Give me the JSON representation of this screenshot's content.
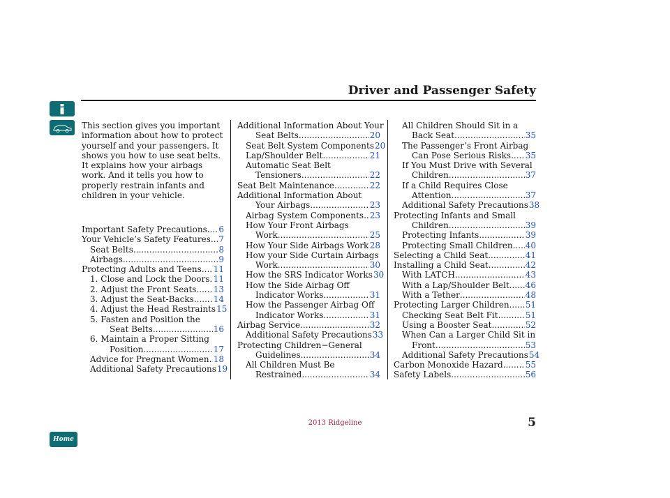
{
  "title": "Driver and Passenger Safety",
  "intro": "This section gives you important information about how to protect yourself and your passengers. It shows you how to use seat belts. It explains how your airbags work. And it tells you how to properly restrain infants and children in your vehicle.",
  "nav": {
    "info_icon": "info-icon",
    "car_icon": "car-icon",
    "home_label": "Home"
  },
  "footer": "2013 Ridgeline",
  "page_number": "5",
  "col1": [
    {
      "t": "Important Safety Precautions",
      "p": "6"
    },
    {
      "t": "Your Vehicle’s Safety Features",
      "p": "7"
    },
    {
      "t": "Seat Belts",
      "p": "8"
    },
    {
      "t": "Airbags",
      "p": "9"
    },
    {
      "t": "Protecting Adults and Teens",
      "p": "11"
    },
    {
      "t": "1. Close and Lock the Doors",
      "p": "11"
    },
    {
      "t": "2. Adjust the Front Seats",
      "p": "13"
    },
    {
      "t": "3. Adjust the Seat-Backs",
      "p": "14"
    },
    {
      "t": "4. Adjust the Head Restraints",
      "p": "15"
    },
    {
      "t": "5. Fasten and Position the"
    },
    {
      "t": "Seat Belts",
      "p": "16"
    },
    {
      "t": "6. Maintain a Proper Sitting"
    },
    {
      "t": "Position",
      "p": "17"
    },
    {
      "t": "Advice for Pregnant Women",
      "p": "18"
    },
    {
      "t": "Additional Safety Precautions",
      "p": "19"
    }
  ],
  "col2": [
    {
      "t": "Additional Information About Your"
    },
    {
      "t": "Seat Belts",
      "p": "20"
    },
    {
      "t": "Seat Belt System Components",
      "p": "20"
    },
    {
      "t": "Lap/Shoulder Belt",
      "p": "21"
    },
    {
      "t": "Automatic Seat Belt"
    },
    {
      "t": "Tensioners",
      "p": "22"
    },
    {
      "t": "Seat Belt Maintenance",
      "p": "22"
    },
    {
      "t": "Additional Information About"
    },
    {
      "t": "Your Airbags",
      "p": "23"
    },
    {
      "t": "Airbag System Components",
      "p": "23"
    },
    {
      "t": "How Your Front Airbags"
    },
    {
      "t": "Work",
      "p": "25"
    },
    {
      "t": "How Your Side Airbags Work",
      "p": "28"
    },
    {
      "t": "How your Side Curtain Airbags"
    },
    {
      "t": "Work",
      "p": "30"
    },
    {
      "t": "How the SRS Indicator Works",
      "p": "30"
    },
    {
      "t": "How the Side Airbag Off"
    },
    {
      "t": "Indicator Works",
      "p": "31"
    },
    {
      "t": "How the Passenger Airbag Off"
    },
    {
      "t": "Indicator Works",
      "p": "31"
    },
    {
      "t": "Airbag Service",
      "p": "32"
    },
    {
      "t": "Additional Safety Precautions",
      "p": "33"
    },
    {
      "t": "Protecting Children−General"
    },
    {
      "t": "Guidelines",
      "p": "34"
    },
    {
      "t": "All Children Must Be"
    },
    {
      "t": "Restrained",
      "p": "34"
    }
  ],
  "col3": [
    {
      "t": "All Children Should Sit in a"
    },
    {
      "t": "Back Seat",
      "p": "35"
    },
    {
      "t": "The Passenger’s Front Airbag"
    },
    {
      "t": "Can Pose Serious Risks",
      "p": "35"
    },
    {
      "t": "If You Must Drive with Several"
    },
    {
      "t": "Children",
      "p": "37"
    },
    {
      "t": "If a Child Requires Close"
    },
    {
      "t": "Attention",
      "p": "37"
    },
    {
      "t": "Additional Safety Precautions",
      "p": "38"
    },
    {
      "t": "Protecting Infants and Small"
    },
    {
      "t": "Children",
      "p": "39"
    },
    {
      "t": "Protecting Infants",
      "p": "39"
    },
    {
      "t": "Protecting Small Children",
      "p": "40"
    },
    {
      "t": "Selecting a Child Seat",
      "p": "41"
    },
    {
      "t": "Installing a Child Seat",
      "p": "42"
    },
    {
      "t": "With LATCH",
      "p": "43"
    },
    {
      "t": "With a Lap/Shoulder Belt",
      "p": "46"
    },
    {
      "t": "With a Tether",
      "p": "48"
    },
    {
      "t": "Protecting Larger Children",
      "p": "51"
    },
    {
      "t": "Checking Seat Belt Fit",
      "p": "51"
    },
    {
      "t": "Using a Booster Seat",
      "p": "52"
    },
    {
      "t": "When Can a Larger Child Sit in"
    },
    {
      "t": "Front",
      "p": "53"
    },
    {
      "t": "Additional Safety Precautions",
      "p": "54"
    },
    {
      "t": "Carbon Monoxide Hazard",
      "p": "55"
    },
    {
      "t": "Safety Labels",
      "p": "56"
    }
  ]
}
